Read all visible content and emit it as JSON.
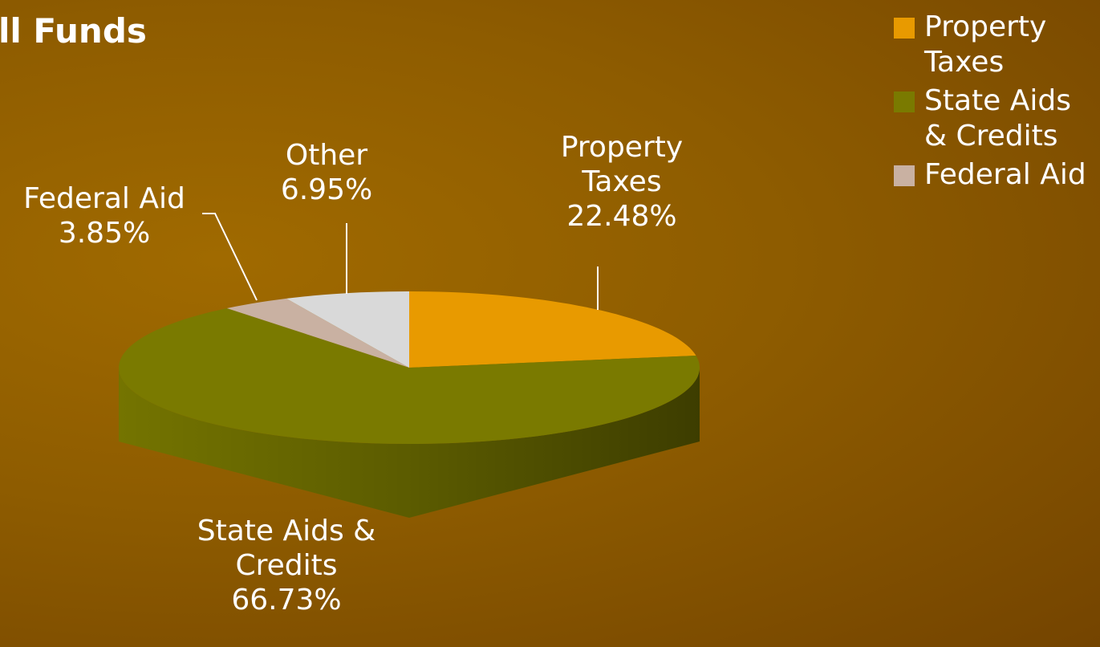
{
  "chart_data": {
    "type": "pie",
    "title": "ll Funds",
    "categories": [
      "Property Taxes",
      "State Aids & Credits",
      "Federal Aid",
      "Other"
    ],
    "values": [
      22.48,
      66.73,
      3.85,
      6.95
    ],
    "value_labels": [
      "22.48%",
      "66.73%",
      "3.85%",
      "6.95%"
    ],
    "colors": [
      "#e89a00",
      "#7a7a00",
      "#c9b1a2",
      "#d9d9d9"
    ],
    "legend": "top-right"
  }
}
